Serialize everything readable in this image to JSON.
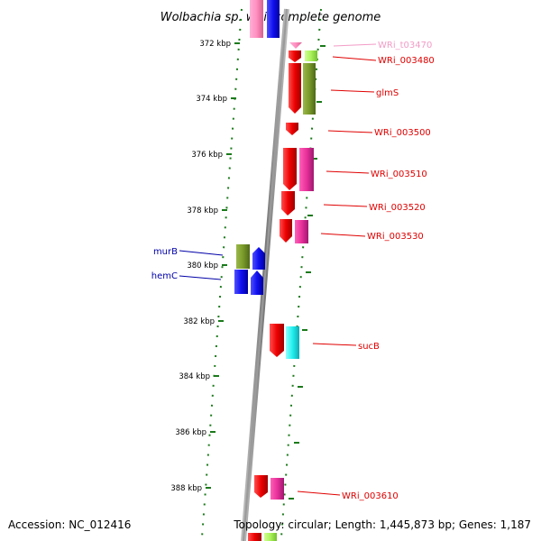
{
  "title": "Wolbachia sp. wRi, complete genome",
  "accession": "Accession: NC_012416",
  "summary": "Topology: circular; Length: 1,445,873 bp; Genes: 1,187",
  "ticks": [
    "372 kbp",
    "374 kbp",
    "376 kbp",
    "378 kbp",
    "380 kbp",
    "382 kbp",
    "384 kbp",
    "386 kbp",
    "388 kbp"
  ],
  "left_labels": [
    {
      "text": "murB",
      "color": "#0000a8"
    },
    {
      "text": "hemC",
      "color": "#0000a8"
    }
  ],
  "right_labels": [
    {
      "text": "WRi_t03470",
      "color": "#f29bc6"
    },
    {
      "text": "WRi_003480",
      "color": "#e00000"
    },
    {
      "text": "glmS",
      "color": "#e00000"
    },
    {
      "text": "WRi_003500",
      "color": "#e00000"
    },
    {
      "text": "WRi_003510",
      "color": "#e00000"
    },
    {
      "text": "WRi_003520",
      "color": "#e00000"
    },
    {
      "text": "WRi_003530",
      "color": "#e00000"
    },
    {
      "text": "sucB",
      "color": "#e00000"
    },
    {
      "text": "WRi_003610",
      "color": "#e00000"
    }
  ],
  "colors": {
    "cds": "#ee0000",
    "trna": "#ff8fc0",
    "magenta": "#e8309a",
    "olive": "#7a9a2a",
    "lime": "#aaf25a",
    "blue": "#1010f0",
    "cyan": "#20f0f0",
    "axis": "#888888",
    "tick_dots": "#1a7a1a"
  }
}
